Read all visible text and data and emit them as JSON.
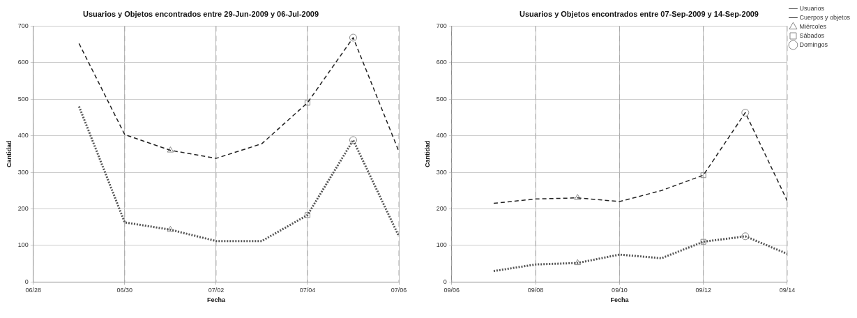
{
  "chart_data": [
    {
      "type": "line",
      "title": "Usuarios y Objetos encontrados entre 29-Jun-2009 y 06-Jul-2009",
      "xlabel": "Fecha",
      "ylabel": "Cantidad",
      "x": [
        "2009-06-29",
        "2009-06-30",
        "2009-07-01",
        "2009-07-02",
        "2009-07-03",
        "2009-07-04",
        "2009-07-05",
        "2009-07-06"
      ],
      "xlim": [
        "2009-06-28",
        "2009-07-06"
      ],
      "xticks": [
        {
          "value": "2009-06-28",
          "label": "06/28"
        },
        {
          "value": "2009-06-30",
          "label": "06/30"
        },
        {
          "value": "2009-07-02",
          "label": "07/02"
        },
        {
          "value": "2009-07-04",
          "label": "07/04"
        },
        {
          "value": "2009-07-06",
          "label": "07/06"
        }
      ],
      "ylim": [
        0,
        700
      ],
      "yticks": [
        0,
        100,
        200,
        300,
        400,
        500,
        600,
        700
      ],
      "grid": true,
      "legend": false,
      "series": [
        {
          "color": "#555555",
          "line_style": "dotted",
          "marker": "none",
          "values": [
            480,
            163,
            143,
            112,
            112,
            183,
            388,
            125
          ]
        },
        {
          "color": "#222222",
          "line_style": "dashed",
          "marker": "none",
          "values": [
            652,
            403,
            360,
            338,
            378,
            490,
            668,
            357
          ]
        },
        {
          "type": "scatter",
          "color": "#888888",
          "marker": "triangle",
          "x": [
            "2009-07-01",
            "2009-07-01"
          ],
          "values": [
            360,
            143
          ]
        },
        {
          "type": "scatter",
          "color": "#888888",
          "marker": "square",
          "x": [
            "2009-07-04",
            "2009-07-04"
          ],
          "values": [
            490,
            183
          ]
        },
        {
          "type": "scatter",
          "color": "#888888",
          "marker": "circle",
          "x": [
            "2009-07-05",
            "2009-07-05"
          ],
          "values": [
            668,
            388
          ]
        }
      ]
    },
    {
      "type": "line",
      "title": "Usuarios y Objetos encontrados entre 07-Sep-2009 y 14-Sep-2009",
      "xlabel": "Fecha",
      "ylabel": "Cantidad",
      "x": [
        "2009-09-07",
        "2009-09-08",
        "2009-09-09",
        "2009-09-10",
        "2009-09-11",
        "2009-09-12",
        "2009-09-13",
        "2009-09-14"
      ],
      "xlim": [
        "2009-09-06",
        "2009-09-14"
      ],
      "xticks": [
        {
          "value": "2009-09-06",
          "label": "09/06"
        },
        {
          "value": "2009-09-08",
          "label": "09/08"
        },
        {
          "value": "2009-09-10",
          "label": "09/10"
        },
        {
          "value": "2009-09-12",
          "label": "09/12"
        },
        {
          "value": "2009-09-14",
          "label": "09/14"
        }
      ],
      "ylim": [
        0,
        700
      ],
      "yticks": [
        0,
        100,
        200,
        300,
        400,
        500,
        600,
        700
      ],
      "grid": true,
      "legend": "top right",
      "series": [
        {
          "name": "Usuarios",
          "color": "#555555",
          "line_style": "dotted",
          "marker": "none",
          "values": [
            30,
            48,
            52,
            75,
            65,
            110,
            125,
            77
          ]
        },
        {
          "name": "Cuerpos y objetos",
          "color": "#222222",
          "line_style": "dashed",
          "marker": "none",
          "values": [
            215,
            227,
            230,
            220,
            250,
            292,
            463,
            222
          ]
        },
        {
          "type": "scatter",
          "name": "Miércoles",
          "color": "#888888",
          "marker": "triangle",
          "x": [
            "2009-09-09",
            "2009-09-09"
          ],
          "values": [
            230,
            52
          ]
        },
        {
          "type": "scatter",
          "name": "Sábados",
          "color": "#888888",
          "marker": "square",
          "x": [
            "2009-09-12",
            "2009-09-12"
          ],
          "values": [
            292,
            110
          ]
        },
        {
          "type": "scatter",
          "name": "Domingos",
          "color": "#888888",
          "marker": "circle",
          "x": [
            "2009-09-13",
            "2009-09-13"
          ],
          "values": [
            463,
            125
          ]
        }
      ]
    }
  ]
}
